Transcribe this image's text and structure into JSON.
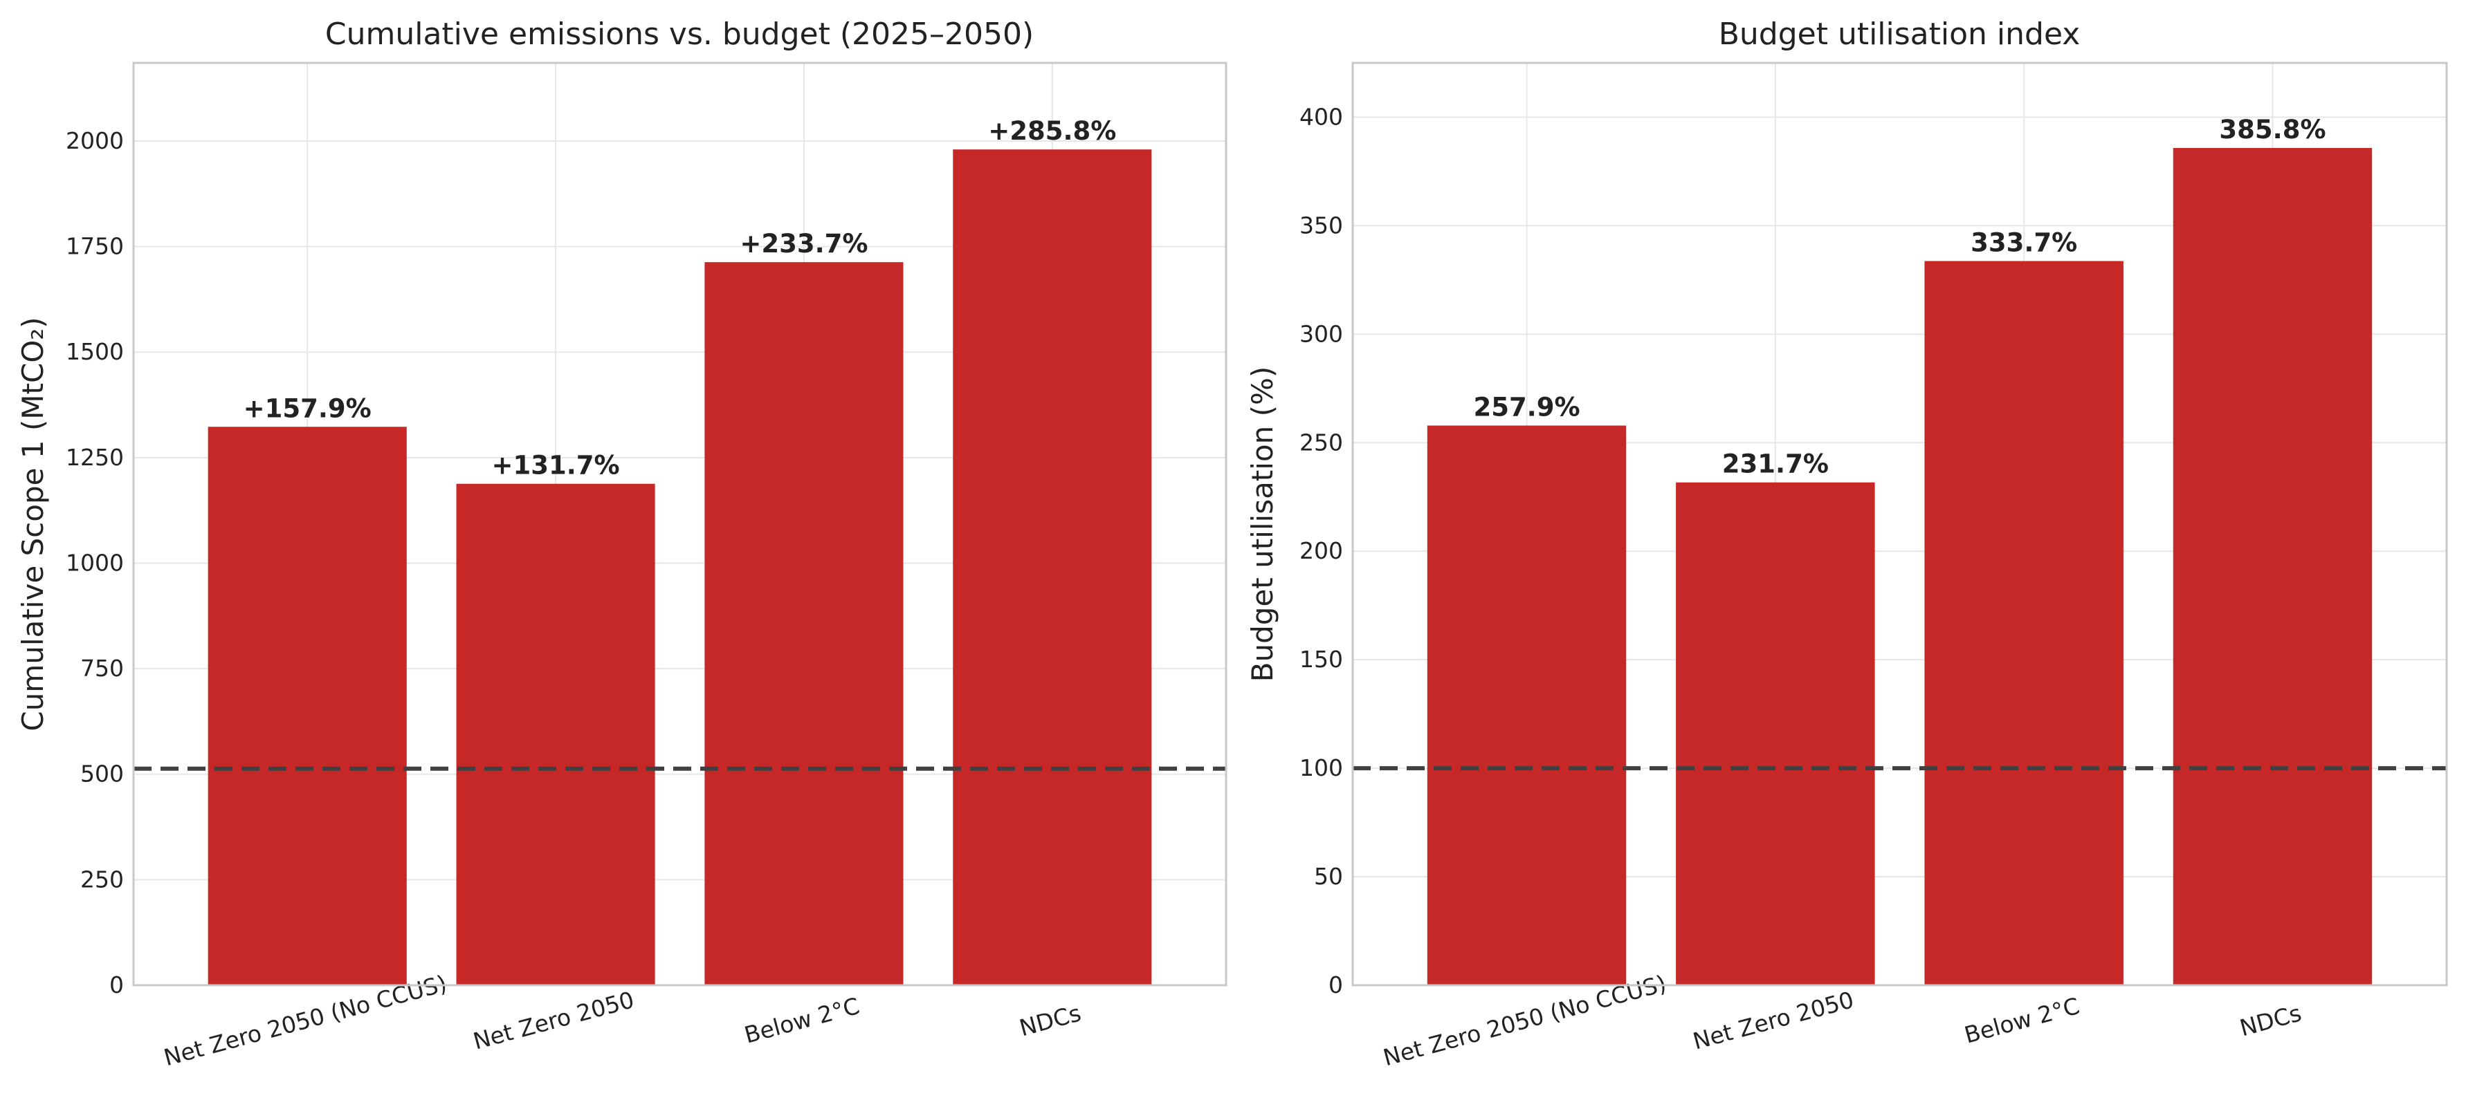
{
  "chart_data": [
    {
      "type": "bar",
      "title": "Cumulative emissions vs. budget (2025–2050)",
      "ylabel": "Cumulative Scope 1 (MtCO₂)",
      "xlabel": "",
      "categories": [
        "Net Zero 2050 (No CCUS)",
        "Net Zero 2050",
        "Below 2°C",
        "NDCs"
      ],
      "values": [
        1323,
        1188,
        1713,
        1980
      ],
      "data_labels": [
        "+157.9%",
        "+131.7%",
        "+233.7%",
        "+285.8%"
      ],
      "reference_line": 513,
      "ylim": [
        0,
        2185
      ],
      "yticks": [
        0,
        250,
        500,
        750,
        1000,
        1250,
        1500,
        1750,
        2000
      ],
      "grid": true,
      "bar_color": "#c62828"
    },
    {
      "type": "bar",
      "title": "Budget utilisation index",
      "ylabel": "Budget utilisation (%)",
      "xlabel": "",
      "categories": [
        "Net Zero 2050 (No CCUS)",
        "Net Zero 2050",
        "Below 2°C",
        "NDCs"
      ],
      "values": [
        257.9,
        231.7,
        333.7,
        385.8
      ],
      "data_labels": [
        "257.9%",
        "231.7%",
        "333.7%",
        "385.8%"
      ],
      "reference_line": 100,
      "ylim": [
        0,
        425
      ],
      "yticks": [
        0,
        50,
        100,
        150,
        200,
        250,
        300,
        350,
        400
      ],
      "grid": true,
      "bar_color": "#c62828"
    }
  ]
}
